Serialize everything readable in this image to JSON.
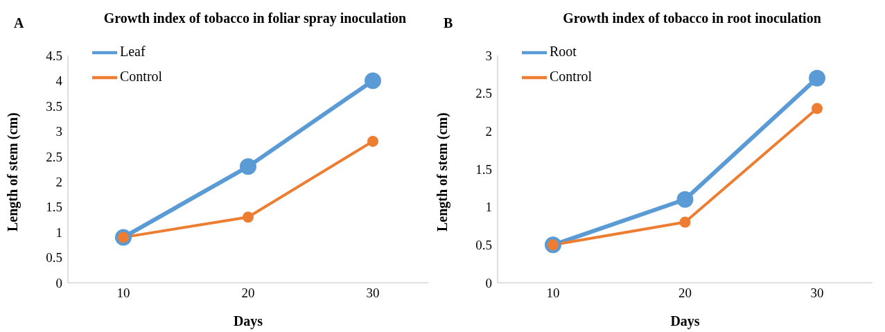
{
  "chart_data": [
    {
      "type": "line",
      "title": "Growth index of tobacco in foliar spray inoculation",
      "xlabel": "Days",
      "ylabel": "Length of stem (cm)",
      "annotations": [
        "A"
      ],
      "categories": [
        "10",
        "20",
        "30"
      ],
      "series": [
        {
          "name": "Leaf",
          "color": "#5b9bd5",
          "values": [
            0.9,
            2.3,
            4.0
          ]
        },
        {
          "name": "Control",
          "color": "#ed7d31",
          "values": [
            0.9,
            1.3,
            2.8
          ]
        }
      ],
      "ylim": [
        0,
        4.5
      ],
      "yticks": [
        0,
        0.5,
        1,
        1.5,
        2,
        2.5,
        3,
        3.5,
        4,
        4.5
      ],
      "grid": false,
      "legend": "top left",
      "marker": "circle",
      "line_style": "solid"
    },
    {
      "type": "line",
      "title": "Growth index of tobacco in root inoculation",
      "xlabel": "Days",
      "ylabel": "Length of stem (cm)",
      "annotations": [
        "B"
      ],
      "categories": [
        "10",
        "20",
        "30"
      ],
      "series": [
        {
          "name": "Root",
          "color": "#5b9bd5",
          "values": [
            0.5,
            1.1,
            2.7
          ]
        },
        {
          "name": "Control",
          "color": "#ed7d31",
          "values": [
            0.5,
            0.8,
            2.3
          ]
        }
      ],
      "ylim": [
        0,
        3
      ],
      "yticks": [
        0,
        0.5,
        1,
        1.5,
        2,
        2.5,
        3
      ],
      "grid": false,
      "legend": "top left",
      "marker": "circle",
      "line_style": "solid"
    }
  ]
}
